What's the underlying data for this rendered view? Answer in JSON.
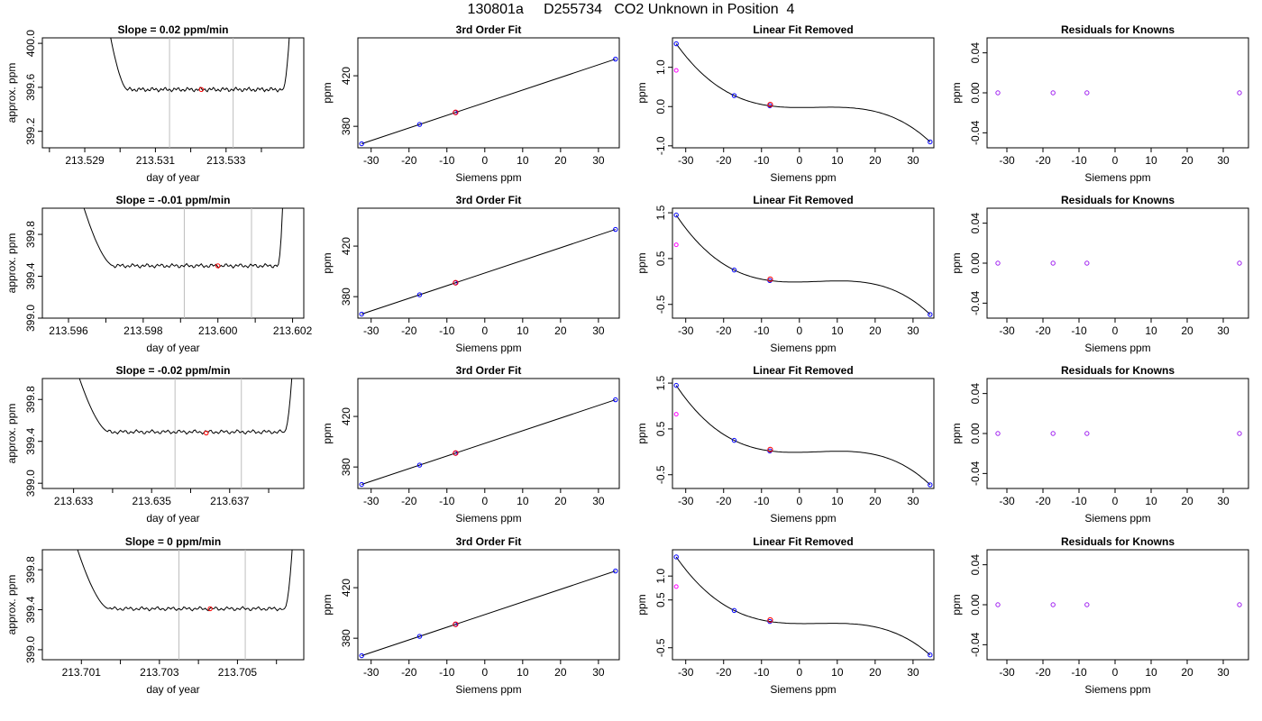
{
  "title": "130801a     D255734   CO2 Unknown in Position  4",
  "colors": {
    "line": "#000000",
    "frame": "#000000",
    "vline": "#bebebe",
    "unknown_point": "#ff0000",
    "known_point": "#0000ff",
    "residual_point": "#a020f0",
    "magenta_point": "#ff00ff"
  },
  "chart_data": [
    {
      "type": "line",
      "title": "Slope =  0.02  ppm/min",
      "xlabel": "day of year",
      "ylabel": "approx. ppm",
      "xlim": [
        213.5278,
        213.5352
      ],
      "ylim": [
        399.05,
        400.05
      ],
      "x_ticks": [
        213.528,
        213.529,
        213.53,
        213.531,
        213.532,
        213.533,
        213.534
      ],
      "x_tick_labels": [
        "",
        "213.529",
        "",
        "213.531",
        "",
        "213.533",
        ""
      ],
      "y_ticks": [
        399.2,
        399.6,
        400.0
      ],
      "y_tick_labels": [
        "399.2",
        "399.6",
        "400.0"
      ],
      "vlines": [
        213.5314,
        213.5332
      ],
      "trace": {
        "start": 213.5295,
        "end": 213.5349,
        "plateau_start": 213.5302,
        "plateau_end": 213.5346,
        "level": 399.58
      },
      "marker": {
        "x": 213.5323,
        "y": 399.58
      }
    },
    {
      "type": "scatter",
      "title": "3rd Order Fit",
      "xlabel": "Siemens ppm",
      "ylabel": "ppm",
      "xlim": [
        -33.5,
        35.5
      ],
      "ylim": [
        363,
        450
      ],
      "x_ticks": [
        -30,
        -20,
        -10,
        0,
        10,
        20,
        30
      ],
      "x_tick_labels": [
        "-30",
        "-20",
        "-10",
        "0",
        "10",
        "20",
        "30"
      ],
      "y_ticks": [
        380,
        420
      ],
      "y_tick_labels": [
        "380",
        "420"
      ],
      "known_x": [
        -32.5,
        -17.2,
        -7.8,
        34.5
      ],
      "known_y": [
        366.2,
        381.5,
        390.9,
        433.2
      ],
      "unknown": {
        "x": -7.7,
        "y": 391.0
      }
    },
    {
      "type": "scatter",
      "title": "Linear Fit Removed",
      "xlabel": "Siemens ppm",
      "ylabel": "ppm",
      "xlim": [
        -33.5,
        35.5
      ],
      "ylim": [
        -1.05,
        1.75
      ],
      "x_ticks": [
        -30,
        -20,
        -10,
        0,
        10,
        20,
        30
      ],
      "x_tick_labels": [
        "-30",
        "-20",
        "-10",
        "0",
        "10",
        "20",
        "30"
      ],
      "y_ticks": [
        -1.0,
        0.0,
        1.0
      ],
      "y_tick_labels": [
        "-1.0",
        "0.0",
        "1.0"
      ],
      "known_x": [
        -32.5,
        -17.2,
        -7.8,
        34.5
      ],
      "known_y": [
        1.6,
        0.28,
        0.02,
        -0.9
      ],
      "unknown": {
        "x": -7.7,
        "y": 0.05
      },
      "magenta": {
        "x": -32.5,
        "y": 0.92
      }
    },
    {
      "type": "scatter",
      "title": "Residuals for Knowns",
      "xlabel": "Siemens ppm",
      "ylabel": "ppm",
      "xlim": [
        -35.5,
        37.0
      ],
      "ylim": [
        -0.055,
        0.055
      ],
      "x_ticks": [
        -30,
        -20,
        -10,
        0,
        10,
        20,
        30
      ],
      "x_tick_labels": [
        "-30",
        "-20",
        "-10",
        "0",
        "10",
        "20",
        "30"
      ],
      "y_ticks": [
        -0.04,
        0.0,
        0.04
      ],
      "y_tick_labels": [
        "-0.04",
        "0.00",
        "0.04"
      ],
      "points_x": [
        -32.5,
        -17.2,
        -7.8,
        34.5
      ],
      "points_y": [
        0,
        0,
        0,
        0
      ]
    },
    {
      "type": "line",
      "title": "Slope =  -0.01  ppm/min",
      "xlabel": "day of year",
      "ylabel": "approx. ppm",
      "xlim": [
        213.5953,
        213.6023
      ],
      "ylim": [
        399.0,
        400.05
      ],
      "x_ticks": [
        213.596,
        213.597,
        213.598,
        213.599,
        213.6,
        213.601,
        213.602
      ],
      "x_tick_labels": [
        "213.596",
        "",
        "213.598",
        "",
        "213.600",
        "",
        "213.602"
      ],
      "y_ticks": [
        399.0,
        399.4,
        399.8
      ],
      "y_tick_labels": [
        "399.0",
        "399.4",
        "399.8"
      ],
      "vlines": [
        213.5991,
        213.6009
      ],
      "trace": {
        "start": 213.5961,
        "end": 213.6018,
        "plateau_start": 213.5972,
        "plateau_end": 213.6016,
        "level": 399.5
      },
      "marker": {
        "x": 213.6,
        "y": 399.5
      }
    },
    {
      "type": "scatter",
      "title": "3rd Order Fit",
      "xlabel": "Siemens ppm",
      "ylabel": "ppm",
      "xlim": [
        -33.5,
        35.5
      ],
      "ylim": [
        363,
        450
      ],
      "x_ticks": [
        -30,
        -20,
        -10,
        0,
        10,
        20,
        30
      ],
      "x_tick_labels": [
        "-30",
        "-20",
        "-10",
        "0",
        "10",
        "20",
        "30"
      ],
      "y_ticks": [
        380,
        420
      ],
      "y_tick_labels": [
        "380",
        "420"
      ],
      "known_x": [
        -32.5,
        -17.2,
        -7.8,
        34.5
      ],
      "known_y": [
        366.2,
        381.5,
        390.9,
        433.2
      ],
      "unknown": {
        "x": -7.7,
        "y": 391.0
      }
    },
    {
      "type": "scatter",
      "title": "Linear Fit Removed",
      "xlabel": "Siemens ppm",
      "ylabel": "ppm",
      "xlim": [
        -33.5,
        35.5
      ],
      "ylim": [
        -0.8,
        1.6
      ],
      "x_ticks": [
        -30,
        -20,
        -10,
        0,
        10,
        20,
        30
      ],
      "x_tick_labels": [
        "-30",
        "-20",
        "-10",
        "0",
        "10",
        "20",
        "30"
      ],
      "y_ticks": [
        -0.5,
        0.5,
        1.5
      ],
      "y_tick_labels": [
        "-0.5",
        "0.5",
        "1.5"
      ],
      "known_x": [
        -32.5,
        -17.2,
        -7.8,
        34.5
      ],
      "known_y": [
        1.45,
        0.25,
        0.02,
        -0.72
      ],
      "unknown": {
        "x": -7.7,
        "y": 0.05
      },
      "magenta": {
        "x": -32.5,
        "y": 0.8
      }
    },
    {
      "type": "scatter",
      "title": "Residuals for Knowns",
      "xlabel": "Siemens ppm",
      "ylabel": "ppm",
      "xlim": [
        -35.5,
        37.0
      ],
      "ylim": [
        -0.055,
        0.055
      ],
      "x_ticks": [
        -30,
        -20,
        -10,
        0,
        10,
        20,
        30
      ],
      "x_tick_labels": [
        "-30",
        "-20",
        "-10",
        "0",
        "10",
        "20",
        "30"
      ],
      "y_ticks": [
        -0.04,
        0.0,
        0.04
      ],
      "y_tick_labels": [
        "-0.04",
        "0.00",
        "0.04"
      ],
      "points_x": [
        -32.5,
        -17.2,
        -7.8,
        34.5
      ],
      "points_y": [
        0,
        0,
        0,
        0
      ]
    },
    {
      "type": "line",
      "title": "Slope =  -0.02  ppm/min",
      "xlabel": "day of year",
      "ylabel": "approx. ppm",
      "xlim": [
        213.6322,
        213.6389
      ],
      "ylim": [
        398.95,
        400.0
      ],
      "x_ticks": [
        213.633,
        213.634,
        213.635,
        213.636,
        213.637,
        213.638
      ],
      "x_tick_labels": [
        "213.633",
        "",
        "213.635",
        "",
        "213.637",
        ""
      ],
      "y_ticks": [
        399.0,
        399.4,
        399.8
      ],
      "y_tick_labels": [
        "399.0",
        "399.4",
        "399.8"
      ],
      "vlines": [
        213.6356,
        213.6373
      ],
      "trace": {
        "start": 213.6328,
        "end": 213.6387,
        "plateau_start": 213.6339,
        "plateau_end": 213.6384,
        "level": 399.49
      },
      "marker": {
        "x": 213.6364,
        "y": 399.48
      }
    },
    {
      "type": "scatter",
      "title": "3rd Order Fit",
      "xlabel": "Siemens ppm",
      "ylabel": "ppm",
      "xlim": [
        -33.5,
        35.5
      ],
      "ylim": [
        363,
        450
      ],
      "x_ticks": [
        -30,
        -20,
        -10,
        0,
        10,
        20,
        30
      ],
      "x_tick_labels": [
        "-30",
        "-20",
        "-10",
        "0",
        "10",
        "20",
        "30"
      ],
      "y_ticks": [
        380,
        420
      ],
      "y_tick_labels": [
        "380",
        "420"
      ],
      "known_x": [
        -32.5,
        -17.2,
        -7.8,
        34.5
      ],
      "known_y": [
        366.2,
        381.5,
        390.9,
        433.2
      ],
      "unknown": {
        "x": -7.7,
        "y": 391.0
      }
    },
    {
      "type": "scatter",
      "title": "Linear Fit Removed",
      "xlabel": "Siemens ppm",
      "ylabel": "ppm",
      "xlim": [
        -33.5,
        35.5
      ],
      "ylim": [
        -0.8,
        1.6
      ],
      "x_ticks": [
        -30,
        -20,
        -10,
        0,
        10,
        20,
        30
      ],
      "x_tick_labels": [
        "-30",
        "-20",
        "-10",
        "0",
        "10",
        "20",
        "30"
      ],
      "y_ticks": [
        -0.5,
        0.5,
        1.5
      ],
      "y_tick_labels": [
        "-0.5",
        "0.5",
        "1.5"
      ],
      "known_x": [
        -32.5,
        -17.2,
        -7.8,
        34.5
      ],
      "known_y": [
        1.45,
        0.25,
        0.02,
        -0.72
      ],
      "unknown": {
        "x": -7.7,
        "y": 0.05
      },
      "magenta": {
        "x": -32.5,
        "y": 0.82
      }
    },
    {
      "type": "scatter",
      "title": "Residuals for Knowns",
      "xlabel": "Siemens ppm",
      "ylabel": "ppm",
      "xlim": [
        -35.5,
        37.0
      ],
      "ylim": [
        -0.055,
        0.055
      ],
      "x_ticks": [
        -30,
        -20,
        -10,
        0,
        10,
        20,
        30
      ],
      "x_tick_labels": [
        "-30",
        "-20",
        "-10",
        "0",
        "10",
        "20",
        "30"
      ],
      "y_ticks": [
        -0.04,
        0.0,
        0.04
      ],
      "y_tick_labels": [
        "-0.04",
        "0.00",
        "0.04"
      ],
      "points_x": [
        -32.5,
        -17.2,
        -7.8,
        34.5
      ],
      "points_y": [
        0,
        0,
        0,
        0
      ]
    },
    {
      "type": "line",
      "title": "Slope =  0  ppm/min",
      "xlabel": "day of year",
      "ylabel": "approx. ppm",
      "xlim": [
        213.7,
        213.7067
      ],
      "ylim": [
        398.9,
        400.0
      ],
      "x_ticks": [
        213.701,
        213.702,
        213.703,
        213.704,
        213.705,
        213.706
      ],
      "x_tick_labels": [
        "213.701",
        "",
        "213.703",
        "",
        "213.705",
        ""
      ],
      "y_ticks": [
        399.0,
        399.4,
        399.8
      ],
      "y_tick_labels": [
        "399.0",
        "399.4",
        "399.8"
      ],
      "vlines": [
        213.7035,
        213.7052
      ],
      "trace": {
        "start": 213.7006,
        "end": 213.7065,
        "plateau_start": 213.7017,
        "plateau_end": 213.7062,
        "level": 399.41
      },
      "marker": {
        "x": 213.7043,
        "y": 399.41
      }
    },
    {
      "type": "scatter",
      "title": "3rd Order Fit",
      "xlabel": "Siemens ppm",
      "ylabel": "ppm",
      "xlim": [
        -33.5,
        35.5
      ],
      "ylim": [
        363,
        450
      ],
      "x_ticks": [
        -30,
        -20,
        -10,
        0,
        10,
        20,
        30
      ],
      "x_tick_labels": [
        "-30",
        "-20",
        "-10",
        "0",
        "10",
        "20",
        "30"
      ],
      "y_ticks": [
        380,
        420
      ],
      "y_tick_labels": [
        "380",
        "420"
      ],
      "known_x": [
        -32.5,
        -17.2,
        -7.8,
        34.5
      ],
      "known_y": [
        366.2,
        381.5,
        390.9,
        433.2
      ],
      "unknown": {
        "x": -7.7,
        "y": 391.0
      }
    },
    {
      "type": "scatter",
      "title": "Linear Fit Removed",
      "xlabel": "Siemens ppm",
      "ylabel": "ppm",
      "xlim": [
        -33.5,
        35.5
      ],
      "ylim": [
        -0.75,
        1.55
      ],
      "x_ticks": [
        -30,
        -20,
        -10,
        0,
        10,
        20,
        30
      ],
      "x_tick_labels": [
        "-30",
        "-20",
        "-10",
        "0",
        "10",
        "20",
        "30"
      ],
      "y_ticks": [
        -0.5,
        0.5,
        1.0
      ],
      "y_tick_labels": [
        "-0.5",
        "0.5",
        "1.0"
      ],
      "known_x": [
        -32.5,
        -17.2,
        -7.8,
        34.5
      ],
      "known_y": [
        1.4,
        0.28,
        0.05,
        -0.65
      ],
      "unknown": {
        "x": -7.7,
        "y": 0.08
      },
      "magenta": {
        "x": -32.5,
        "y": 0.78
      }
    },
    {
      "type": "scatter",
      "title": "Residuals for Knowns",
      "xlabel": "Siemens ppm",
      "ylabel": "ppm",
      "xlim": [
        -35.5,
        37.0
      ],
      "ylim": [
        -0.055,
        0.055
      ],
      "x_ticks": [
        -30,
        -20,
        -10,
        0,
        10,
        20,
        30
      ],
      "x_tick_labels": [
        "-30",
        "-20",
        "-10",
        "0",
        "10",
        "20",
        "30"
      ],
      "y_ticks": [
        -0.04,
        0.0,
        0.04
      ],
      "y_tick_labels": [
        "-0.04",
        "0.00",
        "0.04"
      ],
      "points_x": [
        -32.5,
        -17.2,
        -7.8,
        34.5
      ],
      "points_y": [
        0,
        0,
        0,
        0
      ]
    }
  ]
}
